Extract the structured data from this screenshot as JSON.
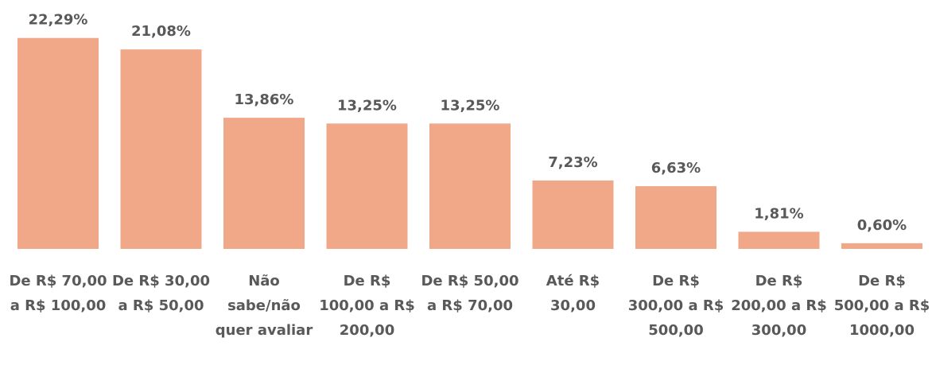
{
  "chart_data": {
    "type": "bar",
    "categories": [
      "De R$ 70,00 a R$ 100,00",
      "De R$ 30,00 a R$ 50,00",
      "Não sabe/não quer avaliar",
      "De R$ 100,00 a R$ 200,00",
      "De R$ 50,00 a R$ 70,00",
      "Até R$ 30,00",
      "De R$ 300,00 a R$ 500,00",
      "De R$ 200,00 a R$ 300,00",
      "De R$ 500,00 a R$ 1000,00"
    ],
    "values": [
      22.29,
      21.08,
      13.86,
      13.25,
      13.25,
      7.23,
      6.63,
      1.81,
      0.6
    ],
    "value_labels": [
      "22,29%",
      "21,08%",
      "13,86%",
      "13,25%",
      "13,25%",
      "7,23%",
      "6,63%",
      "1,81%",
      "0,60%"
    ],
    "color": "#f0a889"
  }
}
